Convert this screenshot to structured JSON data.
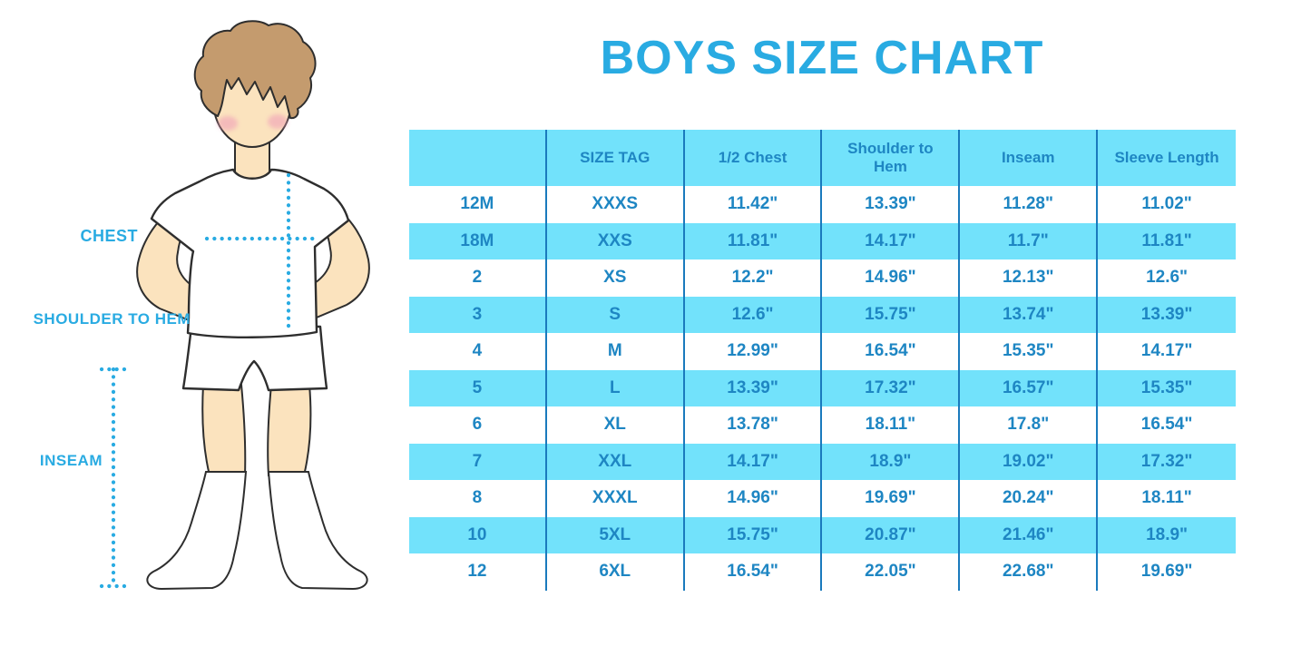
{
  "title": "BOYS SIZE CHART",
  "colors": {
    "accent_blue": "#29ABE2",
    "table_text_blue": "#1E86C3",
    "row_highlight_cyan": "#72E2FB",
    "column_divider_blue": "#1A7ABD",
    "skin": "#FBE3BE",
    "hair": "#C49B6E"
  },
  "figure": {
    "labels": {
      "chest": "CHEST",
      "shoulder_to_hem": "SHOULDER TO HEM",
      "inseam": "INSEAM"
    }
  },
  "chart_data": {
    "type": "table",
    "title": "BOYS SIZE CHART",
    "columns": [
      "",
      "SIZE TAG",
      "1/2 Chest",
      "Shoulder to Hem",
      "Inseam",
      "Sleeve Length"
    ],
    "rows": [
      [
        "12M",
        "XXXS",
        "11.42\"",
        "13.39\"",
        "11.28\"",
        "11.02\""
      ],
      [
        "18M",
        "XXS",
        "11.81\"",
        "14.17\"",
        "11.7\"",
        "11.81\""
      ],
      [
        "2",
        "XS",
        "12.2\"",
        "14.96\"",
        "12.13\"",
        "12.6\""
      ],
      [
        "3",
        "S",
        "12.6\"",
        "15.75\"",
        "13.74\"",
        "13.39\""
      ],
      [
        "4",
        "M",
        "12.99\"",
        "16.54\"",
        "15.35\"",
        "14.17\""
      ],
      [
        "5",
        "L",
        "13.39\"",
        "17.32\"",
        "16.57\"",
        "15.35\""
      ],
      [
        "6",
        "XL",
        "13.78\"",
        "18.11\"",
        "17.8\"",
        "16.54\""
      ],
      [
        "7",
        "XXL",
        "14.17\"",
        "18.9\"",
        "19.02\"",
        "17.32\""
      ],
      [
        "8",
        "XXXL",
        "14.96\"",
        "19.69\"",
        "20.24\"",
        "18.11\""
      ],
      [
        "10",
        "5XL",
        "15.75\"",
        "20.87\"",
        "21.46\"",
        "18.9\""
      ],
      [
        "12",
        "6XL",
        "16.54\"",
        "22.05\"",
        "22.68\"",
        "19.69\""
      ]
    ],
    "layout": {
      "row_striping": "white / cyan alternating, header cyan",
      "gridlines": "vertical column dividers only"
    }
  }
}
